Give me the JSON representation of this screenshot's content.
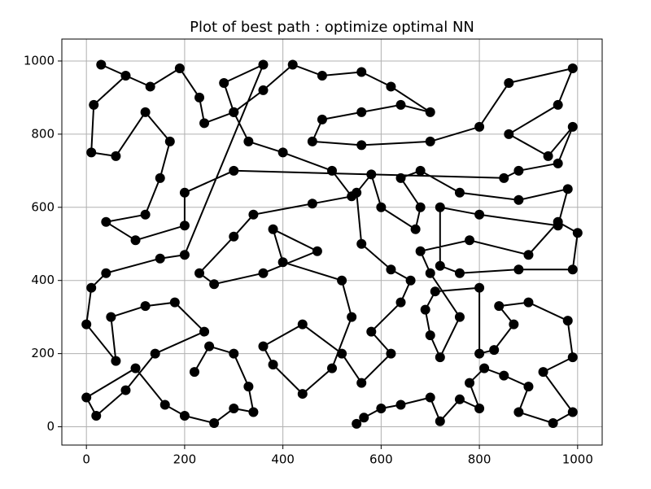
{
  "chart_data": {
    "type": "line",
    "title": "Plot of best path : optimize optimal NN",
    "x": [
      550,
      565,
      600,
      640,
      700,
      720,
      760,
      800,
      780,
      810,
      850,
      900,
      880,
      950,
      990,
      930,
      990,
      980,
      900,
      840,
      870,
      830,
      800,
      800,
      710,
      690,
      700,
      720,
      760,
      700,
      680,
      780,
      900,
      960,
      1000,
      990,
      880,
      760,
      720,
      720,
      800,
      960,
      980,
      880,
      760,
      680,
      640,
      680,
      670,
      600,
      580,
      550,
      560,
      620,
      660,
      640,
      580,
      620,
      560,
      520,
      440,
      360,
      380,
      440,
      500,
      540,
      520,
      400,
      380,
      470,
      360,
      260,
      230,
      300,
      340,
      460,
      540,
      500,
      400,
      330,
      300,
      360,
      420,
      480,
      560,
      620,
      700,
      640,
      560,
      480,
      460,
      560,
      700,
      800,
      860,
      990,
      960,
      860,
      940,
      990,
      960,
      880,
      850,
      300,
      200,
      200,
      100,
      40,
      120,
      150,
      170,
      120,
      60,
      10,
      15,
      80,
      30,
      130,
      190,
      230,
      240,
      300,
      280,
      360,
      200,
      150,
      40,
      10,
      0,
      60,
      50,
      120,
      180,
      240,
      140,
      80,
      20,
      0,
      100,
      160,
      200,
      260,
      300,
      340,
      330,
      300,
      250,
      220
    ],
    "values": [
      8,
      25,
      50,
      60,
      80,
      15,
      75,
      50,
      120,
      160,
      140,
      110,
      40,
      10,
      40,
      150,
      190,
      290,
      340,
      330,
      280,
      210,
      200,
      380,
      370,
      320,
      250,
      190,
      300,
      420,
      480,
      510,
      470,
      560,
      530,
      430,
      430,
      420,
      440,
      600,
      580,
      550,
      650,
      620,
      640,
      700,
      680,
      600,
      540,
      600,
      690,
      640,
      500,
      430,
      400,
      340,
      260,
      200,
      120,
      200,
      280,
      220,
      170,
      90,
      160,
      300,
      400,
      450,
      540,
      480,
      420,
      390,
      420,
      520,
      580,
      610,
      630,
      700,
      750,
      780,
      860,
      920,
      990,
      960,
      970,
      930,
      860,
      880,
      860,
      840,
      780,
      770,
      780,
      820,
      940,
      980,
      880,
      800,
      740,
      820,
      720,
      700,
      680,
      700,
      640,
      550,
      510,
      560,
      580,
      680,
      780,
      860,
      740,
      750,
      880,
      960,
      990,
      930,
      980,
      900,
      830,
      860,
      940,
      990,
      470,
      460,
      420,
      380,
      280,
      180,
      300,
      330,
      340,
      260,
      200,
      100,
      30,
      80,
      160,
      60,
      30,
      10,
      50,
      40,
      110,
      200,
      220,
      150
    ],
    "color": "#000000",
    "xlim": [
      -50,
      1050
    ],
    "ylim": [
      -50,
      1060
    ],
    "xticks": [
      0,
      200,
      400,
      600,
      800,
      1000
    ],
    "yticks": [
      0,
      200,
      400,
      600,
      800,
      1000
    ],
    "grid": true
  }
}
